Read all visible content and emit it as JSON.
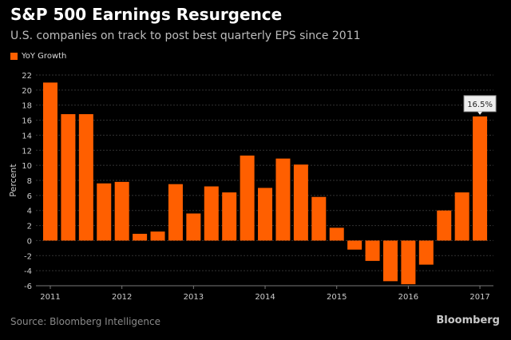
{
  "chart_data": {
    "type": "bar",
    "title": "S&P 500 Earnings Resurgence",
    "subtitle": "U.S. companies on track to post best quarterly EPS since 2011",
    "ylabel": "Percent",
    "xlabel": "",
    "ylim": [
      -6,
      22
    ],
    "yticks": [
      22,
      20,
      18,
      16,
      14,
      12,
      10,
      8,
      6,
      4,
      2,
      0,
      -2,
      -4,
      -6
    ],
    "xticks": [
      "2011",
      "2012",
      "2013",
      "2014",
      "2015",
      "2016",
      "2017"
    ],
    "grid": true,
    "legend_position": "top-left",
    "series": [
      {
        "name": "YoY Growth",
        "color": "#ff5f00",
        "categories": [
          "2011 Q1",
          "2011 Q2",
          "2011 Q3",
          "2011 Q4",
          "2012 Q1",
          "2012 Q2",
          "2012 Q3",
          "2012 Q4",
          "2013 Q1",
          "2013 Q2",
          "2013 Q3",
          "2013 Q4",
          "2014 Q1",
          "2014 Q2",
          "2014 Q3",
          "2014 Q4",
          "2015 Q1",
          "2015 Q2",
          "2015 Q3",
          "2015 Q4",
          "2016 Q1",
          "2016 Q2",
          "2016 Q3",
          "2016 Q4",
          "2017 Q1"
        ],
        "values": [
          21.0,
          16.8,
          16.8,
          7.6,
          7.8,
          0.9,
          1.2,
          7.5,
          3.6,
          7.2,
          6.4,
          11.3,
          7.0,
          10.9,
          10.1,
          5.8,
          1.7,
          -1.2,
          -2.7,
          -5.4,
          -5.8,
          -3.2,
          4.0,
          6.4,
          16.5
        ]
      }
    ],
    "annotation": "16.5%",
    "source": "Source: Bloomberg Intelligence",
    "brand": "Bloomberg"
  }
}
